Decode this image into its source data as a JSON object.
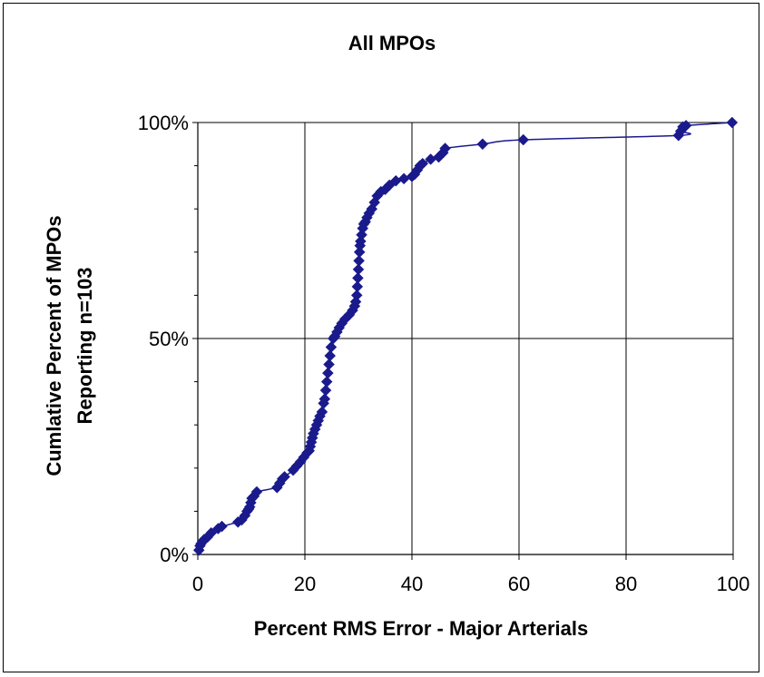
{
  "chart_data": {
    "type": "scatter",
    "title": "All MPOs",
    "xlabel": "Percent RMS Error - Major Arterials",
    "ylabel_lines": [
      "Cumlative Percent of MPOs",
      "Reporting n=103"
    ],
    "xlim": [
      0,
      100
    ],
    "ylim": [
      0,
      1
    ],
    "xticks": [
      0,
      20,
      40,
      60,
      80,
      100
    ],
    "xtick_labels": [
      "0",
      "20",
      "40",
      "60",
      "80",
      "100"
    ],
    "yticks": [
      0,
      0.5,
      1
    ],
    "ytick_labels": [
      "0%",
      "50%",
      "100%"
    ],
    "grid": true,
    "legend": "none",
    "series": [
      {
        "marker": "diamond",
        "line": "smoothed",
        "color": "#1a1a8c",
        "x": [
          0.2,
          0.4,
          0.6,
          0.9,
          1.2,
          1.8,
          2.5,
          3.8,
          4.5,
          7.5,
          8.2,
          8.8,
          9.2,
          9.5,
          9.7,
          9.9,
          10.1,
          10.5,
          11.0,
          14.8,
          15.3,
          15.8,
          16.2,
          17.8,
          18.5,
          19.2,
          19.8,
          20.4,
          20.8,
          21.0,
          21.2,
          21.4,
          21.6,
          21.9,
          22.2,
          22.5,
          22.8,
          23.2,
          23.5,
          23.7,
          23.9,
          24.1,
          24.3,
          24.5,
          24.7,
          24.9,
          25.3,
          25.6,
          26.0,
          26.4,
          26.9,
          27.5,
          28.3,
          28.9,
          29.3,
          29.5,
          29.7,
          29.8,
          29.9,
          30.0,
          30.1,
          30.2,
          30.3,
          30.4,
          30.6,
          30.8,
          31.0,
          31.3,
          31.6,
          32.0,
          32.5,
          33.0,
          33.5,
          34.2,
          35.0,
          35.8,
          37.0,
          38.5,
          40.0,
          40.5,
          41.0,
          41.5,
          42.0,
          43.5,
          45.0,
          45.8,
          46.2,
          53.2,
          60.8,
          89.8,
          90.2,
          90.6,
          91.2,
          99.8
        ],
        "y": [
          0.01,
          0.02,
          0.025,
          0.03,
          0.035,
          0.04,
          0.05,
          0.06,
          0.065,
          0.075,
          0.08,
          0.09,
          0.1,
          0.105,
          0.11,
          0.12,
          0.13,
          0.135,
          0.145,
          0.155,
          0.165,
          0.175,
          0.18,
          0.195,
          0.205,
          0.215,
          0.225,
          0.235,
          0.24,
          0.25,
          0.26,
          0.27,
          0.28,
          0.29,
          0.3,
          0.31,
          0.32,
          0.33,
          0.35,
          0.36,
          0.38,
          0.4,
          0.42,
          0.44,
          0.46,
          0.48,
          0.5,
          0.505,
          0.515,
          0.525,
          0.535,
          0.545,
          0.555,
          0.565,
          0.575,
          0.585,
          0.6,
          0.62,
          0.64,
          0.66,
          0.68,
          0.7,
          0.715,
          0.725,
          0.74,
          0.755,
          0.765,
          0.77,
          0.78,
          0.79,
          0.8,
          0.815,
          0.83,
          0.84,
          0.845,
          0.855,
          0.865,
          0.87,
          0.875,
          0.88,
          0.89,
          0.9,
          0.905,
          0.915,
          0.92,
          0.93,
          0.94,
          0.95,
          0.96,
          0.97,
          0.98,
          0.99,
          0.993,
          1.0
        ]
      }
    ]
  }
}
